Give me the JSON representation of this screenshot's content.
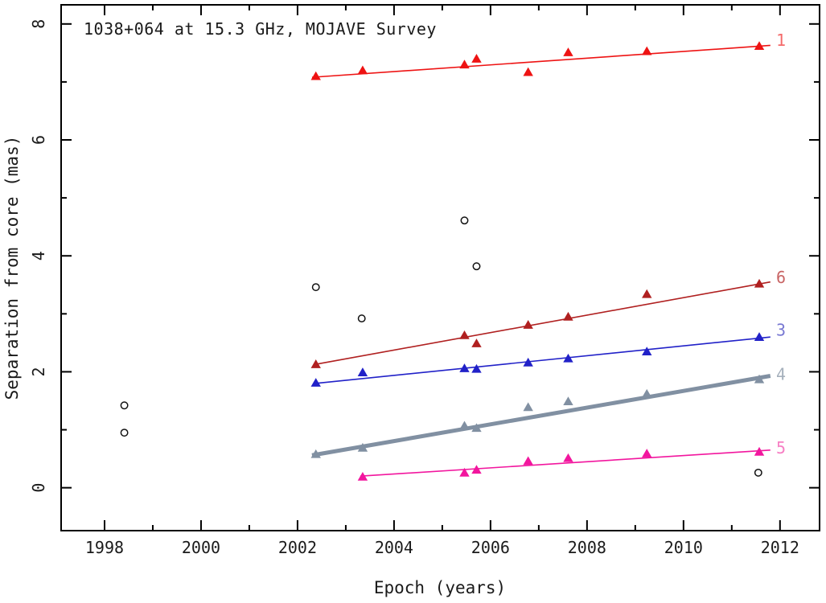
{
  "figure": {
    "title": "1038+064 at 15.3 GHz, MOJAVE Survey",
    "xlabel": "Epoch (years)",
    "ylabel": "Separation from core (mas)"
  },
  "chart_data": {
    "type": "scatter",
    "title": "1038+064 at 15.3 GHz, MOJAVE Survey",
    "xlabel": "Epoch (years)",
    "ylabel": "Separation from core (mas)",
    "xlim": [
      1997.1,
      2012.82
    ],
    "ylim": [
      -0.74,
      8.33
    ],
    "x_major_ticks": [
      1998,
      2000,
      2002,
      2004,
      2006,
      2008,
      2010,
      2012
    ],
    "x_minor_ticks": [
      1999,
      2001,
      2003,
      2005,
      2007,
      2009,
      2011
    ],
    "y_major_ticks": [
      0,
      2,
      4,
      6,
      8
    ],
    "y_minor_ticks": [
      1,
      3,
      5,
      7
    ],
    "grid": false,
    "legend_position": "right-end-of-lines",
    "frame_color": "#000000",
    "text_color": "#1a1a1a",
    "marker_shape": "filled-triangle-up",
    "series": [
      {
        "name": "1",
        "color": "#ee1313",
        "label_color": "#f46a6a",
        "line_width": 1.6,
        "x": [
          2002.38,
          2003.35,
          2005.46,
          2005.71,
          2006.78,
          2007.61,
          2009.24,
          2011.57
        ],
        "y": [
          7.1,
          7.2,
          7.3,
          7.4,
          7.17,
          7.51,
          7.53,
          7.62
        ],
        "fit_line": [
          [
            2002.3,
            7.08
          ],
          [
            2011.8,
            7.63
          ]
        ],
        "label_pos": [
          2011.92,
          7.72
        ]
      },
      {
        "name": "6",
        "color": "#b02020",
        "label_color": "#c86464",
        "line_width": 1.6,
        "x": [
          2002.38,
          2005.46,
          2005.71,
          2006.78,
          2007.61,
          2009.24,
          2011.57
        ],
        "y": [
          2.13,
          2.63,
          2.49,
          2.81,
          2.95,
          3.34,
          3.52
        ],
        "fit_line": [
          [
            2002.38,
            2.13
          ],
          [
            2011.8,
            3.55
          ]
        ],
        "label_pos": [
          2011.92,
          3.63
        ]
      },
      {
        "name": "3",
        "color": "#2121c8",
        "label_color": "#7878d2",
        "line_width": 1.6,
        "x": [
          2002.38,
          2003.35,
          2005.46,
          2005.71,
          2006.78,
          2007.61,
          2009.24,
          2011.57
        ],
        "y": [
          1.81,
          1.99,
          2.06,
          2.05,
          2.16,
          2.23,
          2.35,
          2.6
        ],
        "fit_line": [
          [
            2002.38,
            1.8
          ],
          [
            2011.8,
            2.6
          ]
        ],
        "label_pos": [
          2011.92,
          2.72
        ]
      },
      {
        "name": "4",
        "color": "#8190a2",
        "label_color": "#a5b0bc",
        "line_width": 5,
        "x": [
          2002.38,
          2003.35,
          2005.46,
          2005.71,
          2006.78,
          2007.61,
          2009.24,
          2011.57
        ],
        "y": [
          0.58,
          0.69,
          1.07,
          1.03,
          1.39,
          1.49,
          1.62,
          1.87
        ],
        "fit_line": [
          [
            2002.3,
            0.56
          ],
          [
            2011.8,
            1.93
          ]
        ],
        "label_pos": [
          2011.92,
          1.96
        ]
      },
      {
        "name": "5",
        "color": "#f2169e",
        "label_color": "#f77fc4",
        "line_width": 1.6,
        "x": [
          2003.35,
          2005.46,
          2005.71,
          2006.78,
          2007.61,
          2009.24,
          2011.57
        ],
        "y": [
          0.19,
          0.26,
          0.31,
          0.46,
          0.51,
          0.59,
          0.62
        ],
        "fit_line": [
          [
            2003.3,
            0.2
          ],
          [
            2011.8,
            0.65
          ]
        ],
        "label_pos": [
          2011.92,
          0.69
        ]
      }
    ],
    "unidentified_points": {
      "marker": "open-circle",
      "color": "#111111",
      "points": [
        [
          1998.41,
          1.42
        ],
        [
          1998.41,
          0.95
        ],
        [
          2002.38,
          3.46
        ],
        [
          2003.33,
          2.92
        ],
        [
          2005.46,
          4.61
        ],
        [
          2005.71,
          3.82
        ],
        [
          2011.55,
          0.26
        ]
      ]
    }
  }
}
